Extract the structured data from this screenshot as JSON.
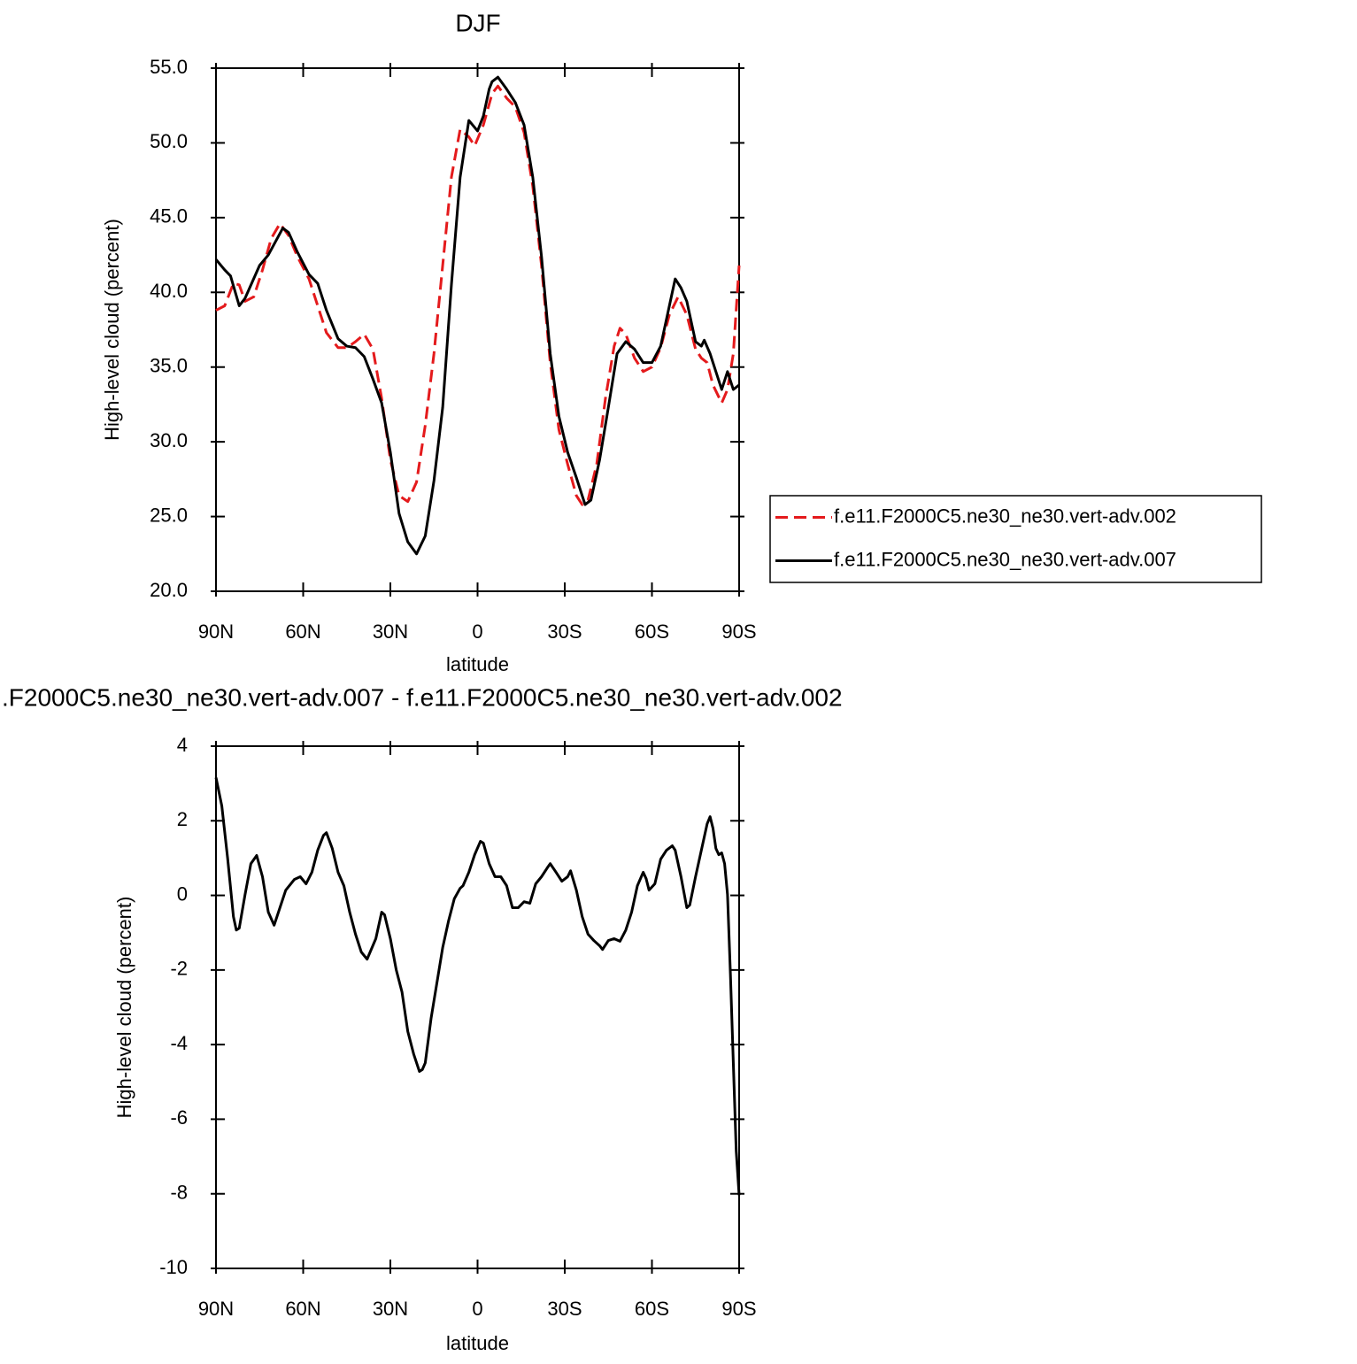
{
  "chart_data": [
    {
      "type": "line",
      "title": "DJF",
      "xlabel": "latitude",
      "ylabel": "High-level cloud (percent)",
      "xlim": [
        90,
        -90
      ],
      "xticks": [
        {
          "value": 90,
          "label": "90N"
        },
        {
          "value": 60,
          "label": "60N"
        },
        {
          "value": 30,
          "label": "30N"
        },
        0,
        {
          "value": -30,
          "label": "30S"
        },
        {
          "value": -60,
          "label": "60S"
        },
        {
          "value": -90,
          "label": "90S"
        }
      ],
      "ylim": [
        20,
        55
      ],
      "yticks": [
        {
          "value": 20,
          "label": "20.0"
        },
        {
          "value": 25,
          "label": "25.0"
        },
        {
          "value": 30,
          "label": "30.0"
        },
        {
          "value": 35,
          "label": "35.0"
        },
        {
          "value": 40,
          "label": "40.0"
        },
        {
          "value": 45,
          "label": "45.0"
        },
        {
          "value": 50,
          "label": "50.0"
        },
        {
          "value": 55,
          "label": "55.0"
        }
      ],
      "legend": "right",
      "series": [
        {
          "name": "f.e11.F2000C5.ne30_ne30.vert-adv.002",
          "color": "#e41a1c",
          "dash": "dashed",
          "x": [
            90,
            87,
            84,
            82,
            80,
            77,
            74,
            71,
            68,
            65,
            62,
            58,
            55,
            52,
            48,
            45,
            42,
            39,
            36,
            33,
            30,
            27,
            24,
            21,
            18,
            15,
            12,
            9,
            6,
            3,
            1,
            -2,
            -5,
            -7,
            -10,
            -13,
            -16,
            -19,
            -22,
            -25,
            -28,
            -31,
            -34,
            -36,
            -38,
            -41,
            -44,
            -47,
            -49,
            -51,
            -54,
            -57,
            -60,
            -63,
            -66,
            -69,
            -72,
            -75,
            -77,
            -79,
            -81,
            -84,
            -86,
            -88,
            -90
          ],
          "values": [
            38.8,
            39.1,
            40.6,
            40.5,
            39.4,
            39.7,
            41.5,
            43.6,
            44.6,
            43.8,
            42.4,
            40.9,
            39.1,
            37.3,
            36.3,
            36.3,
            36.7,
            37.2,
            36.2,
            32.9,
            28.8,
            26.4,
            26,
            27.3,
            31.1,
            35.9,
            41.8,
            47.7,
            50.9,
            50.4,
            49.8,
            51.2,
            53.3,
            53.8,
            53,
            52.4,
            50.7,
            47.1,
            41.8,
            35.3,
            30.8,
            28.5,
            26.4,
            25.8,
            26.1,
            28.5,
            32.9,
            36.4,
            37.6,
            37.2,
            35.6,
            34.7,
            35,
            36.3,
            38.5,
            39.7,
            38.5,
            36.2,
            35.6,
            35.3,
            33.8,
            32.6,
            33.5,
            35.9,
            41.8
          ]
        },
        {
          "name": "f.e11.F2000C5.ne30_ne30.vert-adv.007",
          "color": "#000000",
          "dash": "solid",
          "x": [
            90,
            87,
            85,
            82,
            80,
            75,
            72,
            67,
            65,
            62,
            58,
            55,
            52,
            48,
            45,
            42,
            39,
            36,
            33,
            30,
            27,
            24,
            21,
            18,
            15,
            12,
            9,
            6,
            3,
            0,
            -2,
            -4,
            -5,
            -7,
            -10,
            -13,
            -16,
            -19,
            -22,
            -25,
            -28,
            -31,
            -34,
            -37,
            -39,
            -42,
            -45,
            -48,
            -51,
            -54,
            -57,
            -60,
            -63,
            -66,
            -68,
            -70,
            -72,
            -75,
            -77,
            -78,
            -80,
            -82,
            -84,
            -86,
            -88,
            -90
          ],
          "values": [
            42.2,
            41.5,
            41.1,
            39.1,
            39.6,
            41.8,
            42.5,
            44.3,
            44,
            42.7,
            41.2,
            40.6,
            38.8,
            36.9,
            36.4,
            36.3,
            35.7,
            34.2,
            32.6,
            29.3,
            25.2,
            23.3,
            22.5,
            23.7,
            27.4,
            32.3,
            40.5,
            47.7,
            51.5,
            50.8,
            51.8,
            53.6,
            54.1,
            54.4,
            53.6,
            52.7,
            51.2,
            47.7,
            42.4,
            35.9,
            31.7,
            29.3,
            27.6,
            25.8,
            26.1,
            28.8,
            32.3,
            35.9,
            36.7,
            36.2,
            35.3,
            35.3,
            36.4,
            39.1,
            40.9,
            40.3,
            39.4,
            36.7,
            36.4,
            36.8,
            35.9,
            34.7,
            33.5,
            34.7,
            33.5,
            33.8
          ]
        }
      ]
    },
    {
      "type": "line",
      "title": ".F2000C5.ne30_ne30.vert-adv.007 - f.e11.F2000C5.ne30_ne30.vert-adv.002",
      "xlabel": "latitude",
      "ylabel": "High-level cloud (percent)",
      "xlim": [
        90,
        -90
      ],
      "xticks": [
        {
          "value": 90,
          "label": "90N"
        },
        {
          "value": 60,
          "label": "60N"
        },
        {
          "value": 30,
          "label": "30N"
        },
        0,
        {
          "value": -30,
          "label": "30S"
        },
        {
          "value": -60,
          "label": "60S"
        },
        {
          "value": -90,
          "label": "90S"
        }
      ],
      "ylim": [
        -10,
        4
      ],
      "yticks": [
        -10,
        -8,
        -6,
        -4,
        -2,
        0,
        2,
        4
      ],
      "color": "#000000",
      "x": [
        90,
        88,
        86,
        84,
        83,
        82,
        80,
        78,
        76,
        74,
        72,
        70,
        68,
        66,
        63,
        61,
        59,
        57,
        55,
        53,
        52,
        50,
        48,
        46,
        44,
        42,
        40,
        38,
        35,
        33,
        32,
        30,
        28,
        26,
        24,
        22,
        20,
        19,
        18,
        16,
        14,
        12,
        10,
        8,
        6,
        5,
        3,
        1,
        -1,
        -2,
        -4,
        -6,
        -8,
        -10,
        -12,
        -14,
        -16,
        -18,
        -20,
        -22,
        -24,
        -25,
        -27,
        -29,
        -31,
        -32,
        -34,
        -36,
        -38,
        -40,
        -42,
        -43,
        -45,
        -47,
        -49,
        -51,
        -53,
        -55,
        -57,
        -58,
        -59,
        -61,
        -63,
        -65,
        -67,
        -68,
        -70,
        -72,
        -73,
        -75,
        -77,
        -79,
        -80,
        -81,
        -82,
        -83,
        -84,
        -85,
        -86,
        -87,
        -88,
        -89,
        -90
      ],
      "values": [
        3.16,
        2.4,
        1,
        -0.57,
        -0.93,
        -0.88,
        0.02,
        0.85,
        1.07,
        0.5,
        -0.45,
        -0.8,
        -0.33,
        0.14,
        0.43,
        0.5,
        0.31,
        0.62,
        1.21,
        1.61,
        1.68,
        1.26,
        0.62,
        0.26,
        -0.45,
        -1.04,
        -1.52,
        -1.71,
        -1.16,
        -0.45,
        -0.52,
        -1.16,
        -1.99,
        -2.59,
        -3.65,
        -4.25,
        -4.72,
        -4.67,
        -4.49,
        -3.3,
        -2.35,
        -1.4,
        -0.69,
        -0.09,
        0.19,
        0.26,
        0.62,
        1.09,
        1.45,
        1.4,
        0.85,
        0.5,
        0.5,
        0.26,
        -0.33,
        -0.33,
        -0.17,
        -0.21,
        0.31,
        0.5,
        0.74,
        0.85,
        0.62,
        0.38,
        0.5,
        0.66,
        0.14,
        -0.57,
        -1.04,
        -1.21,
        -1.35,
        -1.45,
        -1.21,
        -1.16,
        -1.23,
        -0.93,
        -0.45,
        0.26,
        0.62,
        0.45,
        0.14,
        0.31,
        0.97,
        1.21,
        1.33,
        1.21,
        0.5,
        -0.33,
        -0.26,
        0.5,
        1.21,
        1.92,
        2.11,
        1.8,
        1.26,
        1.09,
        1.14,
        0.85,
        0.02,
        -2.11,
        -4.49,
        -6.86,
        -8.04
      ]
    }
  ]
}
